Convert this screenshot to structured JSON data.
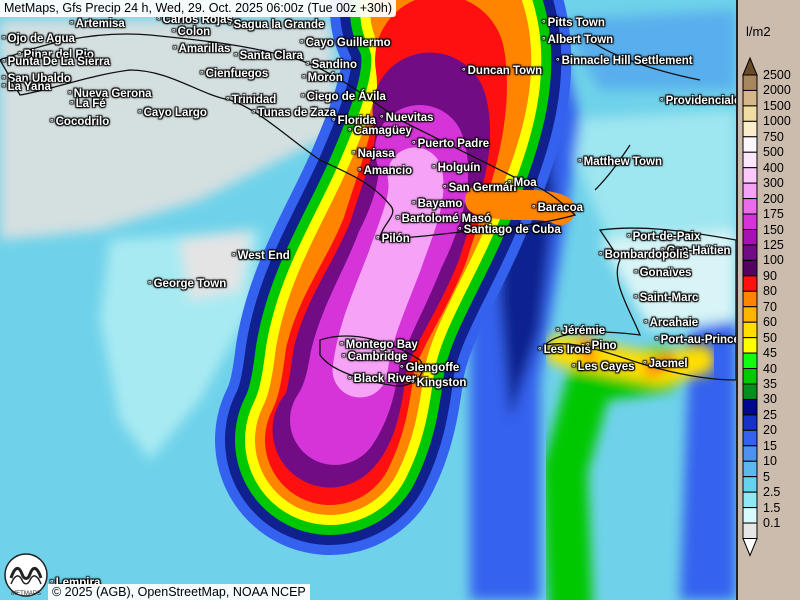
{
  "title": "MetMaps, Gfs Precip 24 h, Wed, 29. Oct. 2025 06:00z (Tue 00z +30h)",
  "credit": "© 2025 (AGB), OpenStreetMap, NOAA NCEP",
  "logo_text": "METMAPS",
  "legend": {
    "unit": "l/m2",
    "labels": [
      "2500",
      "2000",
      "1500",
      "1000",
      "750",
      "500",
      "400",
      "300",
      "200",
      "175",
      "150",
      "125",
      "100",
      "90",
      "80",
      "70",
      "60",
      "50",
      "45",
      "40",
      "35",
      "30",
      "25",
      "20",
      "15",
      "10",
      "5",
      "2.5",
      "1.5",
      "0.1"
    ],
    "colors": [
      "#a8865e",
      "#d6b78a",
      "#f1dca2",
      "#f9edcc",
      "#fdf8fd",
      "#fbe6fb",
      "#fbcafb",
      "#f6a2f6",
      "#ea6cea",
      "#d534d8",
      "#a412b2",
      "#720c84",
      "#520460",
      "#ff1010",
      "#ff8400",
      "#ffb400",
      "#ffde00",
      "#ffff00",
      "#10ff10",
      "#00c800",
      "#008f1c",
      "#00088e",
      "#1432c8",
      "#3462ee",
      "#4c92ee",
      "#5cb8ee",
      "#66d2ee",
      "#90e8f2",
      "#d8fafc",
      "#e6e6e6"
    ],
    "top_color": "#6a4a28",
    "bottom_color": "#ffffff"
  },
  "cities": [
    "Artemisa",
    "Carlos Rojas",
    "Colon",
    "Sagua la Grande",
    "Ojo de Agua",
    "Pinar del Rio",
    "Amarillas",
    "Santa Clara",
    "Cayo Guillermo",
    "Punta De La Sierra",
    "Sandino",
    "Cienfuegos",
    "Morón",
    "San Ubaldo",
    "La Yana",
    "Nueva Gerona",
    "Trinidad",
    "Ciego de Ávila",
    "La Fé",
    "Cayo Largo",
    "Tunas de Zaza",
    "Florida",
    "Nuevitas",
    "Camagüey",
    "Cocodrilo",
    "Puerto Padre",
    "Najasa",
    "Holguín",
    "Amancio",
    "San Germán",
    "Moa",
    "Bayamo",
    "Baracoa",
    "Bartolomé Masó",
    "Santiago de Cuba",
    "Pilón",
    "West End",
    "George Town",
    "Montego Bay",
    "Cambridge",
    "Glengoffe",
    "Black River",
    "Kingston",
    "Pitts Town",
    "Albert Town",
    "Duncan Town",
    "Binnacle Hill Settlement",
    "Providenciales",
    "Matthew Town",
    "Port-de-Paix",
    "Cap-Haïtien",
    "Bombardopolis",
    "Gonaïves",
    "Saint-Marc",
    "Arcahaie",
    "Port-au-Prince",
    "Jérémie",
    "Les Irois",
    "Pino",
    "Les Cayes",
    "Jacmel",
    "Lempira"
  ]
}
